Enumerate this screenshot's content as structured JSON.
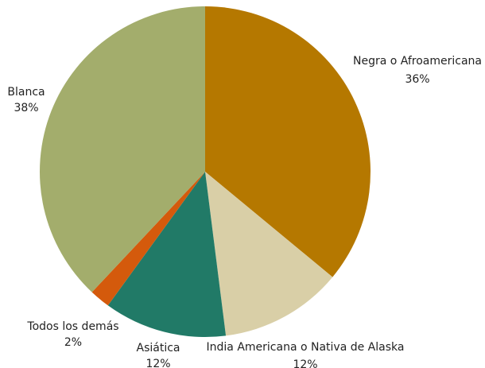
{
  "chart_data": {
    "type": "pie",
    "title": "",
    "slices": [
      {
        "label": "Negra o Afroamericana",
        "percent_label": "36%",
        "value": 36,
        "color": "#b57800"
      },
      {
        "label": "India Americana o Nativa de Alaska",
        "percent_label": "12%",
        "value": 12,
        "color": "#d9cfa7"
      },
      {
        "label": "Asiática",
        "percent_label": "12%",
        "value": 12,
        "color": "#217a67"
      },
      {
        "label": "Todos los demás",
        "percent_label": "2%",
        "value": 2,
        "color": "#d45a0c"
      },
      {
        "label": "Blanca",
        "percent_label": "38%",
        "value": 38,
        "color": "#a3ad6c"
      }
    ],
    "start_angle": "12 o'clock",
    "direction": "clockwise",
    "legend": "none"
  }
}
